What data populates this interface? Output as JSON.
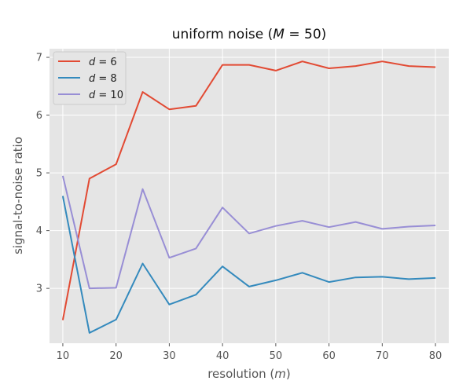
{
  "chart_data": {
    "type": "line",
    "title_prefix": "uniform noise (",
    "title_var": "M",
    "title_suffix": " = 50)",
    "xlabel_prefix": "resolution (",
    "xlabel_var": "m",
    "xlabel_suffix": ")",
    "ylabel": "signal-to-noise ratio",
    "x": [
      10,
      15,
      20,
      25,
      30,
      35,
      40,
      45,
      50,
      55,
      60,
      65,
      70,
      75,
      80
    ],
    "xticks": [
      10,
      20,
      30,
      40,
      50,
      60,
      70,
      80
    ],
    "yticks": [
      3,
      4,
      5,
      6,
      7
    ],
    "xlim": [
      7.5,
      82.5
    ],
    "ylim": [
      2.05,
      7.15
    ],
    "grid": true,
    "legend_position": "top-left",
    "series": [
      {
        "var": "d",
        "value_text": " = 6",
        "color": "#E24A33",
        "values": [
          2.45,
          4.9,
          5.15,
          6.4,
          6.1,
          6.16,
          6.87,
          6.87,
          6.77,
          6.93,
          6.81,
          6.85,
          6.93,
          6.85,
          6.83
        ]
      },
      {
        "var": "d",
        "value_text": " = 8",
        "color": "#348ABD",
        "values": [
          4.6,
          2.23,
          2.46,
          3.43,
          2.72,
          2.89,
          3.38,
          3.03,
          3.14,
          3.27,
          3.11,
          3.19,
          3.2,
          3.16,
          3.18
        ]
      },
      {
        "var": "d",
        "value_text": " = 10",
        "color": "#988ED5",
        "values": [
          4.95,
          3.0,
          3.01,
          4.72,
          3.53,
          3.69,
          4.4,
          3.95,
          4.08,
          4.17,
          4.06,
          4.15,
          4.03,
          4.07,
          4.09
        ]
      }
    ]
  }
}
